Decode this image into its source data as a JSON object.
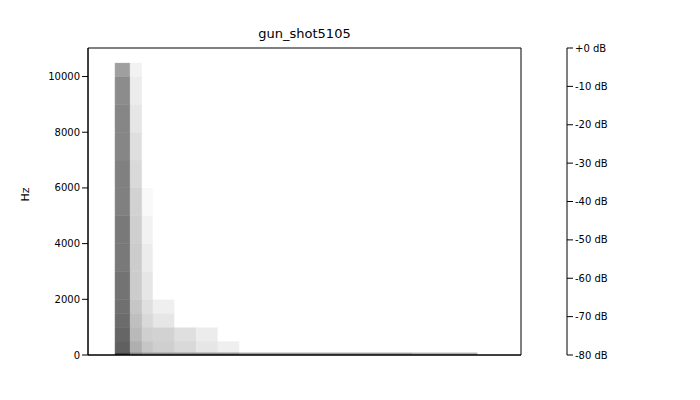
{
  "chart_data": {
    "type": "heatmap",
    "title": "gun_shot5105",
    "y_label": "Hz",
    "xlim": [
      0,
      40
    ],
    "ylim": [
      0,
      11025
    ],
    "yticks": [
      0,
      2000,
      4000,
      6000,
      8000,
      10000
    ],
    "tick_labels": "y",
    "x_bins": [
      0,
      2.5,
      3.9,
      5,
      6,
      8,
      10,
      12,
      14,
      20,
      30,
      36,
      40
    ],
    "y_bins": [
      0,
      100,
      500,
      1000,
      1500,
      2000,
      3000,
      4000,
      5000,
      6000,
      7000,
      8000,
      9000,
      10000,
      10500,
      11025
    ],
    "cells": [
      [
        -80,
        -20,
        -40,
        -45,
        -45,
        -45,
        -45,
        -45,
        -50,
        -50,
        -55,
        -80
      ],
      [
        -80,
        -30,
        -55,
        -62,
        -65,
        -68,
        -72,
        -75,
        -80,
        -80,
        -80,
        -80
      ],
      [
        -80,
        -32,
        -58,
        -65,
        -66,
        -70,
        -74,
        -80,
        -80,
        -80,
        -80,
        -80
      ],
      [
        -80,
        -34,
        -60,
        -68,
        -72,
        -80,
        -80,
        -80,
        -80,
        -80,
        -80,
        -80
      ],
      [
        -80,
        -35,
        -62,
        -70,
        -75,
        -80,
        -80,
        -80,
        -80,
        -80,
        -80,
        -80
      ],
      [
        -80,
        -36,
        -64,
        -72,
        -80,
        -80,
        -80,
        -80,
        -80,
        -80,
        -80,
        -80
      ],
      [
        -80,
        -38,
        -64,
        -74,
        -80,
        -80,
        -80,
        -80,
        -80,
        -80,
        -80,
        -80
      ],
      [
        -80,
        -38,
        -65,
        -76,
        -80,
        -80,
        -80,
        -80,
        -80,
        -80,
        -80,
        -80
      ],
      [
        -80,
        -40,
        -66,
        -78,
        -80,
        -80,
        -80,
        -80,
        -80,
        -80,
        -80,
        -80
      ],
      [
        -80,
        -40,
        -68,
        -80,
        -80,
        -80,
        -80,
        -80,
        -80,
        -80,
        -80,
        -80
      ],
      [
        -80,
        -42,
        -70,
        -80,
        -80,
        -80,
        -80,
        -80,
        -80,
        -80,
        -80,
        -80
      ],
      [
        -80,
        -42,
        -72,
        -80,
        -80,
        -80,
        -80,
        -80,
        -80,
        -80,
        -80,
        -80
      ],
      [
        -80,
        -44,
        -74,
        -80,
        -80,
        -80,
        -80,
        -80,
        -80,
        -80,
        -80,
        -80
      ],
      [
        -80,
        -50,
        -76,
        -80,
        -80,
        -80,
        -80,
        -80,
        -80,
        -80,
        -80,
        -80
      ],
      [
        -80,
        -80,
        -80,
        -80,
        -80,
        -80,
        -80,
        -80,
        -80,
        -80,
        -80,
        -80
      ]
    ],
    "colorbar": {
      "range": [
        -80,
        0
      ],
      "ticks": [
        {
          "value": 0,
          "label": "+0 dB"
        },
        {
          "value": -10,
          "label": "-10 dB"
        },
        {
          "value": -20,
          "label": "-20 dB"
        },
        {
          "value": -30,
          "label": "-30 dB"
        },
        {
          "value": -40,
          "label": "-40 dB"
        },
        {
          "value": -50,
          "label": "-50 dB"
        },
        {
          "value": -60,
          "label": "-60 dB"
        },
        {
          "value": -70,
          "label": "-70 dB"
        },
        {
          "value": -80,
          "label": "-80 dB"
        }
      ]
    }
  }
}
